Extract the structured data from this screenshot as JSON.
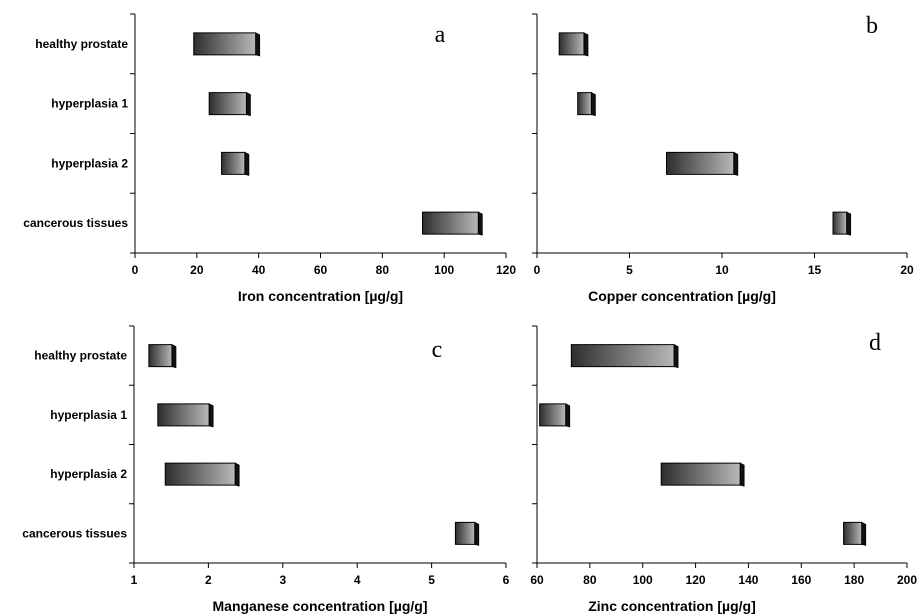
{
  "chart_data": [
    {
      "type": "bar",
      "subtype": "floating-range",
      "panel_letter": "a",
      "categories": [
        "healthy prostate",
        "hyperplasia 1",
        "hyperplasia 2",
        "cancerous tissues"
      ],
      "ranges": [
        [
          19,
          40
        ],
        [
          24,
          37
        ],
        [
          28,
          36.5
        ],
        [
          93,
          112
        ]
      ],
      "xlabel": "Iron concentration [µg/g]",
      "ylabel": "",
      "xlim": [
        0,
        120
      ],
      "xticks": [
        0,
        20,
        40,
        60,
        80,
        100,
        120
      ],
      "grid": false,
      "bar_style": "3d-gradient-dark-gray"
    },
    {
      "type": "bar",
      "subtype": "floating-range",
      "panel_letter": "b",
      "categories": [
        "healthy prostate",
        "hyperplasia 1",
        "hyperplasia 2",
        "cancerous tissues"
      ],
      "ranges": [
        [
          1.2,
          2.7
        ],
        [
          2.2,
          3.1
        ],
        [
          7.0,
          10.8
        ],
        [
          16.0,
          16.9
        ]
      ],
      "xlabel": "Copper concentration [µg/g]",
      "ylabel": "",
      "xlim": [
        0,
        20
      ],
      "xticks": [
        0,
        5,
        10,
        15,
        20
      ],
      "grid": false,
      "bar_style": "3d-gradient-dark-gray"
    },
    {
      "type": "bar",
      "subtype": "floating-range",
      "panel_letter": "c",
      "categories": [
        "healthy prostate",
        "hyperplasia 1",
        "hyperplasia 2",
        "cancerous tissues"
      ],
      "ranges": [
        [
          1.2,
          1.55
        ],
        [
          1.32,
          2.05
        ],
        [
          1.42,
          2.4
        ],
        [
          5.32,
          5.62
        ]
      ],
      "xlabel": "Manganese concentration [µg/g]",
      "ylabel": "",
      "xlim": [
        1,
        6
      ],
      "xticks": [
        1,
        2,
        3,
        4,
        5,
        6
      ],
      "grid": false,
      "bar_style": "3d-gradient-dark-gray"
    },
    {
      "type": "bar",
      "subtype": "floating-range",
      "panel_letter": "d",
      "categories": [
        "healthy prostate",
        "hyperplasia 1",
        "hyperplasia 2",
        "cancerous tissues"
      ],
      "ranges": [
        [
          73,
          113
        ],
        [
          61,
          72
        ],
        [
          107,
          138
        ],
        [
          176,
          184
        ]
      ],
      "xlabel": "Zinc concentration [µg/g]",
      "ylabel": "",
      "xlim": [
        60,
        200
      ],
      "xticks": [
        60,
        80,
        100,
        120,
        140,
        160,
        180,
        200
      ],
      "grid": false,
      "bar_style": "3d-gradient-dark-gray"
    }
  ],
  "colors": {
    "bar_dark": "#2e2e2e",
    "bar_light": "#b8b8b8",
    "bar_edge": "#000000",
    "axis": "#000000"
  }
}
